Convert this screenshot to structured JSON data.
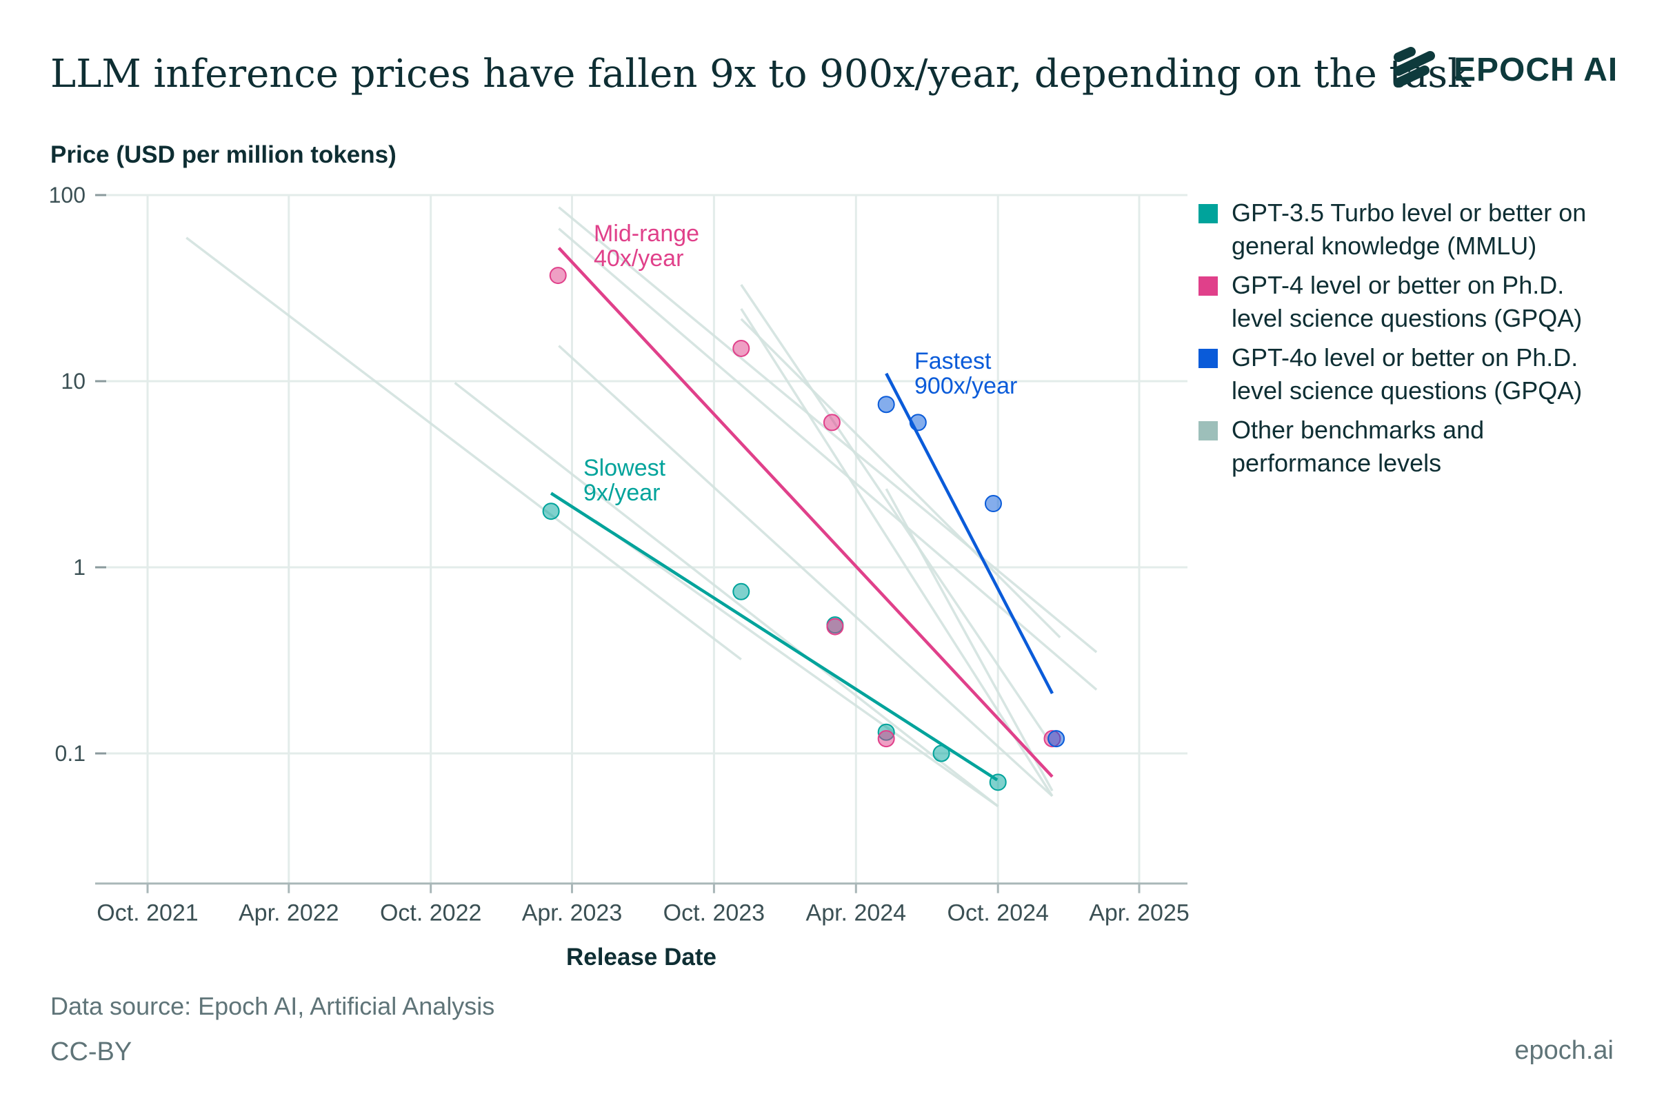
{
  "header": {
    "title": "LLM inference prices have fallen 9x to 900x/year, depending on the task",
    "logo_text": "EPOCH AI"
  },
  "footer": {
    "source": "Data source: Epoch AI, Artificial Analysis",
    "license": "CC-BY",
    "site": "epoch.ai"
  },
  "colors": {
    "gpt35": "#00a39b",
    "gpt4": "#e0408a",
    "gpt4o": "#0a5bd9",
    "other": "#9dbfba",
    "text": "#0e2e33",
    "muted": "#5f7478",
    "grid": "#e3ecea"
  },
  "chart_data": {
    "type": "scatter",
    "title": "LLM inference prices have fallen 9x to 900x/year, depending on the task",
    "xlabel": "Release Date",
    "ylabel": "Price (USD per million tokens)",
    "yscale": "log",
    "ylim": [
      0.02,
      100
    ],
    "xlim": [
      "2021-08-01",
      "2025-05-15"
    ],
    "grid": true,
    "legend_placement": "right",
    "x_ticks": [
      {
        "date": "2021-10-01",
        "label": "Oct. 2021"
      },
      {
        "date": "2022-04-01",
        "label": "Apr. 2022"
      },
      {
        "date": "2022-10-01",
        "label": "Oct. 2022"
      },
      {
        "date": "2023-04-01",
        "label": "Apr. 2023"
      },
      {
        "date": "2023-10-01",
        "label": "Oct. 2023"
      },
      {
        "date": "2024-04-01",
        "label": "Apr. 2024"
      },
      {
        "date": "2024-10-01",
        "label": "Oct. 2024"
      },
      {
        "date": "2025-04-01",
        "label": "Apr. 2025"
      }
    ],
    "y_ticks": [
      {
        "value": 100,
        "label": "100"
      },
      {
        "value": 10,
        "label": "10"
      },
      {
        "value": 1,
        "label": "1"
      },
      {
        "value": 0.1,
        "label": "0.1"
      }
    ],
    "legend": [
      {
        "key": "gpt35",
        "lines": [
          "GPT-3.5 Turbo level or better on",
          "general knowledge (MMLU)"
        ]
      },
      {
        "key": "gpt4",
        "lines": [
          "GPT-4 level or better on Ph.D.",
          "level science questions (GPQA)"
        ]
      },
      {
        "key": "gpt4o",
        "lines": [
          "GPT-4o level or better on Ph.D.",
          "level science questions (GPQA)"
        ]
      },
      {
        "key": "other",
        "lines": [
          "Other benchmarks and",
          "performance levels"
        ]
      }
    ],
    "other_trends": [
      {
        "x": [
          "2021-11-20",
          "2023-11-05"
        ],
        "y": [
          59,
          0.32
        ]
      },
      {
        "x": [
          "2022-11-01",
          "2024-10-01"
        ],
        "y": [
          9.8,
          0.052
        ]
      },
      {
        "x": [
          "2023-03-15",
          "2024-12-10"
        ],
        "y": [
          15.5,
          0.059
        ]
      },
      {
        "x": [
          "2023-03-15",
          "2025-02-05"
        ],
        "y": [
          86,
          0.35
        ]
      },
      {
        "x": [
          "2023-03-15",
          "2025-02-05"
        ],
        "y": [
          66,
          0.22
        ]
      },
      {
        "x": [
          "2023-11-05",
          "2024-12-10"
        ],
        "y": [
          33,
          0.11
        ]
      },
      {
        "x": [
          "2023-11-05",
          "2024-12-10"
        ],
        "y": [
          24.5,
          0.059
        ]
      },
      {
        "x": [
          "2023-11-05",
          "2024-12-20"
        ],
        "y": [
          21.6,
          0.42
        ]
      },
      {
        "x": [
          "2024-05-10",
          "2024-12-10"
        ],
        "y": [
          2.64,
          0.063
        ]
      },
      {
        "x": [
          "2023-05-01",
          "2024-10-01"
        ],
        "y": [
          1.78,
          0.052
        ]
      }
    ],
    "series": [
      {
        "key": "gpt35",
        "points": [
          {
            "x": "2023-03-05",
            "y": 2.0
          },
          {
            "x": "2023-11-05",
            "y": 0.74
          },
          {
            "x": "2024-03-05",
            "y": 0.49
          },
          {
            "x": "2024-05-10",
            "y": 0.13
          },
          {
            "x": "2024-07-20",
            "y": 0.1
          },
          {
            "x": "2024-10-01",
            "y": 0.07
          }
        ],
        "trend": {
          "x": [
            "2023-03-05",
            "2024-09-30"
          ],
          "y": [
            2.5,
            0.072
          ]
        },
        "annotation": [
          "Slowest",
          "9x/year"
        ]
      },
      {
        "key": "gpt4",
        "points": [
          {
            "x": "2023-03-14",
            "y": 37
          },
          {
            "x": "2023-11-05",
            "y": 15
          },
          {
            "x": "2024-03-01",
            "y": 6
          },
          {
            "x": "2024-03-05",
            "y": 0.48
          },
          {
            "x": "2024-05-10",
            "y": 0.12
          },
          {
            "x": "2024-12-10",
            "y": 0.12
          }
        ],
        "trend": {
          "x": [
            "2023-03-15",
            "2024-12-10"
          ],
          "y": [
            52,
            0.075
          ]
        },
        "annotation": [
          "Mid-range",
          "40x/year"
        ]
      },
      {
        "key": "gpt4o",
        "points": [
          {
            "x": "2024-05-10",
            "y": 7.5
          },
          {
            "x": "2024-06-20",
            "y": 6
          },
          {
            "x": "2024-09-25",
            "y": 2.2
          },
          {
            "x": "2024-12-15",
            "y": 0.12
          }
        ],
        "trend": {
          "x": [
            "2024-05-10",
            "2024-12-10"
          ],
          "y": [
            11,
            0.21
          ]
        },
        "annotation": [
          "Fastest",
          "900x/year"
        ]
      }
    ]
  }
}
